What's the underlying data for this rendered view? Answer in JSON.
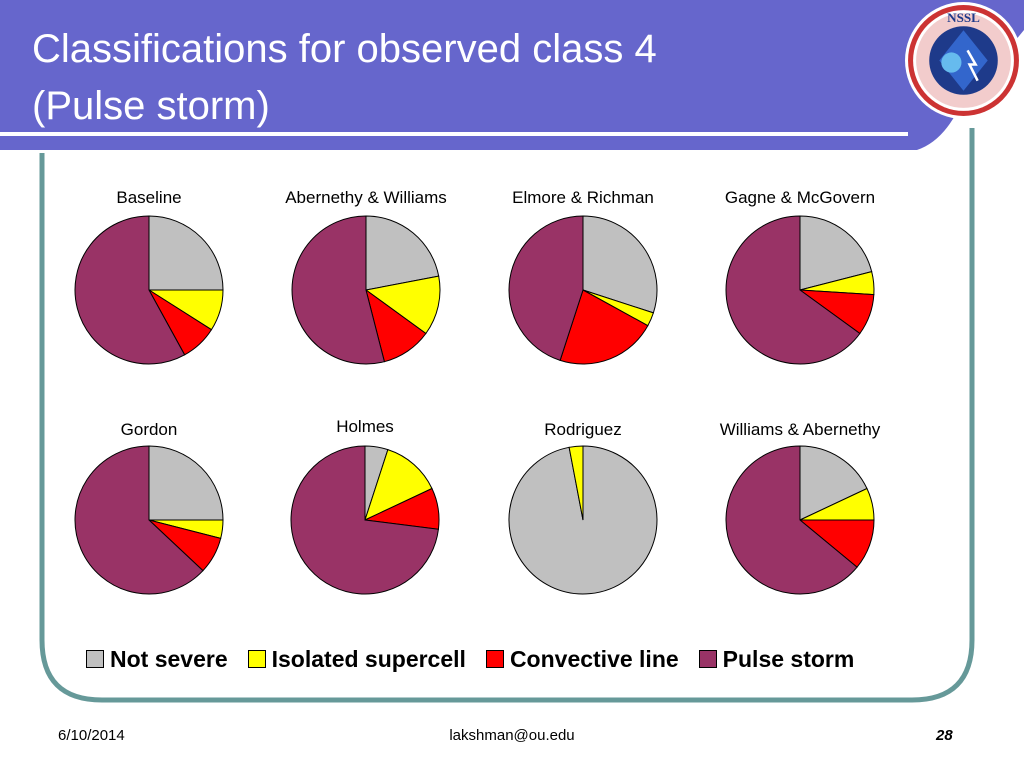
{
  "slide": {
    "title_line1": "Classifications for observed class 4",
    "title_line2": "(Pulse storm)",
    "logo": {
      "icon": "nssl-logo",
      "text_top": "NSSL",
      "text_ring": "NATIONAL SEVERE STORMS LABORATORY"
    },
    "footer": {
      "date": "6/10/2014",
      "email": "lakshman@ou.edu",
      "page": "28"
    },
    "colors": {
      "header": "#6666cc",
      "frame": "#669999"
    }
  },
  "chart_data": {
    "type": "pie",
    "categories": [
      "Not severe",
      "Isolated supercell",
      "Convective line",
      "Pulse storm"
    ],
    "colors": [
      "#c0c0c0",
      "#ffff00",
      "#ff0000",
      "#993366"
    ],
    "legend_position": "bottom",
    "charts": [
      {
        "title": "Baseline",
        "values": [
          25,
          9,
          8,
          58
        ]
      },
      {
        "title": "Abernethy & Williams",
        "values": [
          22,
          13,
          11,
          54
        ]
      },
      {
        "title": "Elmore & Richman",
        "values": [
          30,
          3,
          22,
          45
        ]
      },
      {
        "title": "Gagne & McGovern",
        "values": [
          21,
          5,
          9,
          65
        ]
      },
      {
        "title": "Gordon",
        "values": [
          25,
          4,
          8,
          63
        ]
      },
      {
        "title": "Holmes",
        "values": [
          5,
          13,
          9,
          73
        ]
      },
      {
        "title": "Rodriguez",
        "values": [
          97,
          3,
          0,
          0
        ]
      },
      {
        "title": "Williams & Abernethy",
        "values": [
          18,
          7,
          11,
          64
        ]
      }
    ]
  }
}
